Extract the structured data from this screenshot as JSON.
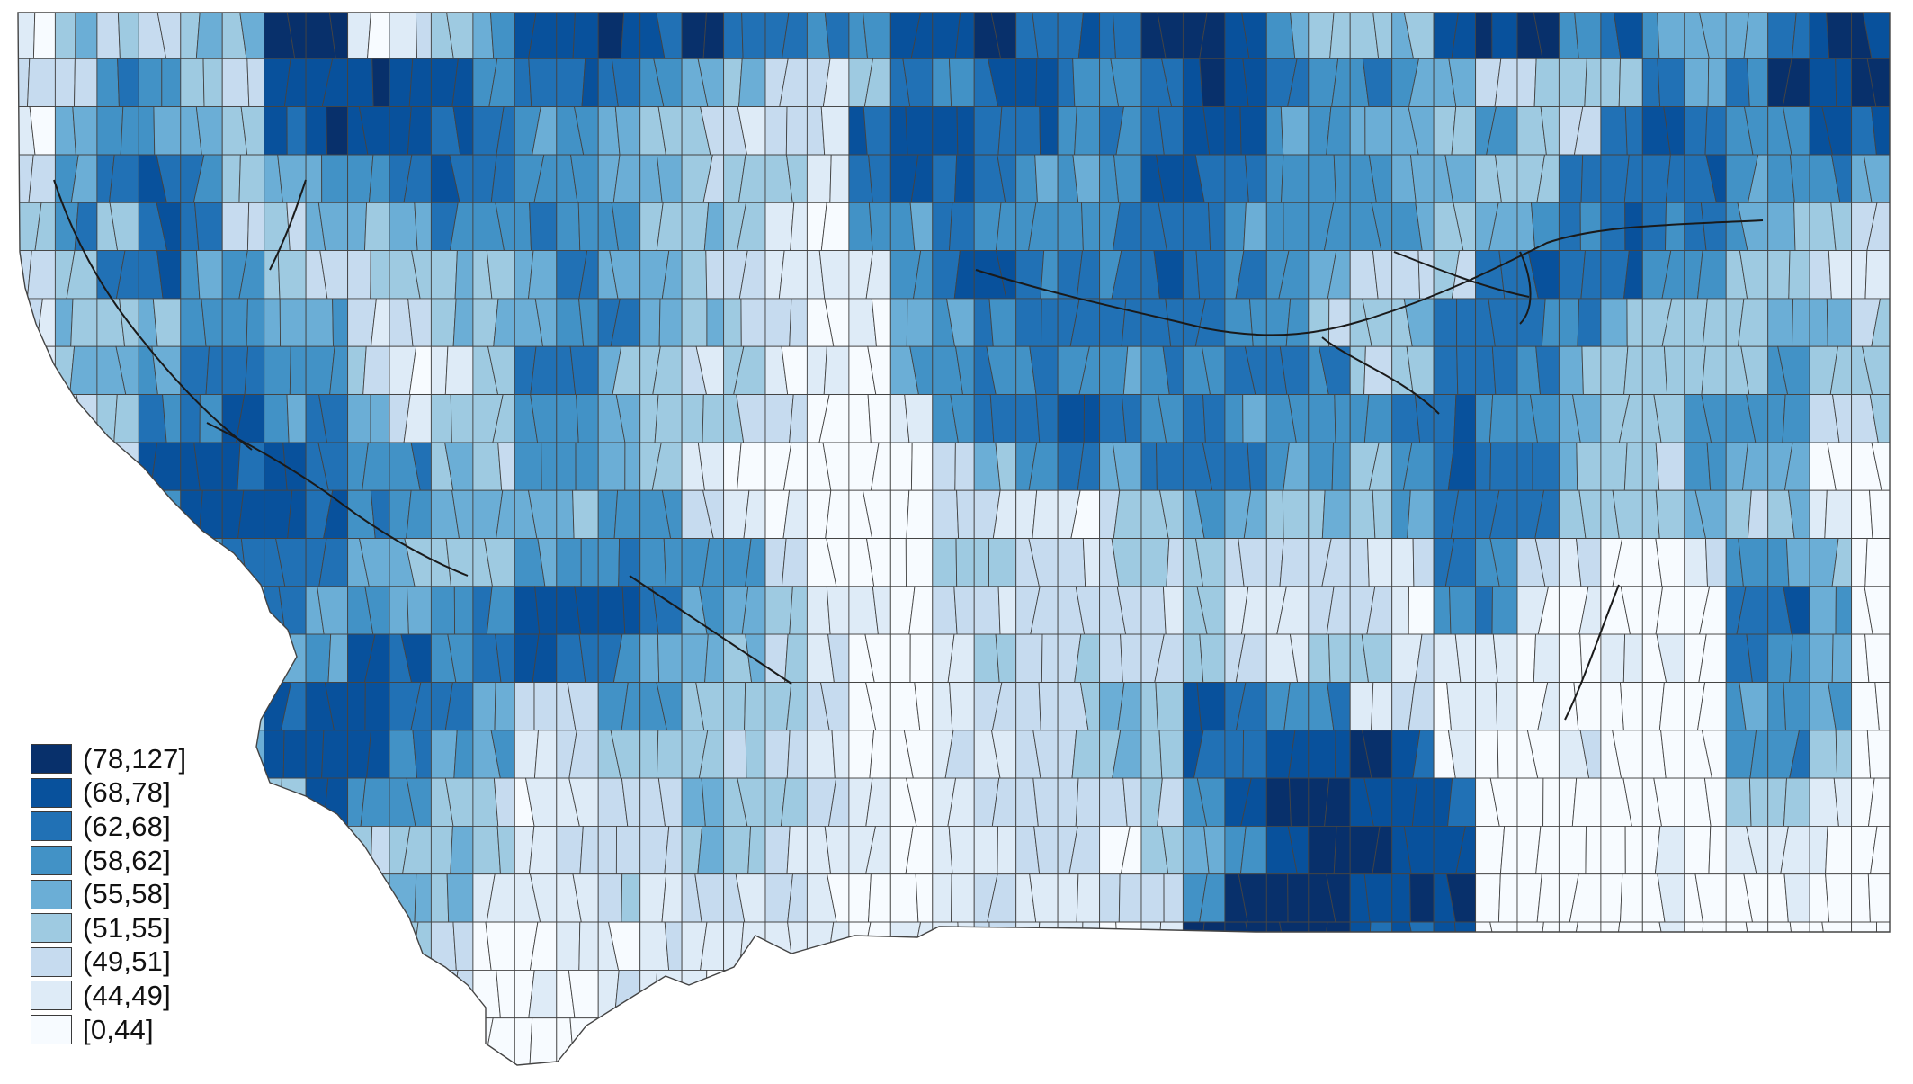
{
  "map": {
    "region": "Montana",
    "palette": {
      "c0": "#f7fbff",
      "c1": "#deebf7",
      "c2": "#c6dbef",
      "c3": "#9ecae1",
      "c4": "#6baed6",
      "c5": "#4292c6",
      "c6": "#2171b5",
      "c7": "#08519c",
      "c8": "#08306b"
    },
    "outline_color": "#444444"
  },
  "legend": {
    "items": [
      {
        "label": "(78,127]",
        "color": "#08306b"
      },
      {
        "label": "(68,78]",
        "color": "#08519c"
      },
      {
        "label": "(62,68]",
        "color": "#2171b5"
      },
      {
        "label": "(58,62]",
        "color": "#4292c6"
      },
      {
        "label": "(55,58]",
        "color": "#6baed6"
      },
      {
        "label": "(51,55]",
        "color": "#9ecae1"
      },
      {
        "label": "(49,51]",
        "color": "#c6dbef"
      },
      {
        "label": "(44,49]",
        "color": "#deebf7"
      },
      {
        "label": "[0,44]",
        "color": "#f7fbff"
      }
    ]
  }
}
